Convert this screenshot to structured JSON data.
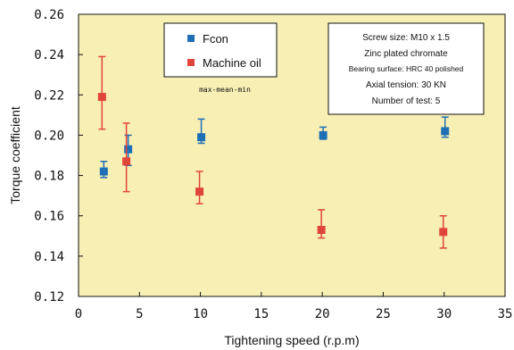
{
  "chart_data": {
    "type": "scatter",
    "xlabel": "Tightening speed (r.p.m)",
    "ylabel": "Torque coefficient",
    "xlim": [
      0,
      35
    ],
    "ylim": [
      0.12,
      0.26
    ],
    "x_ticks": [
      "0",
      "5",
      "10",
      "15",
      "20",
      "25",
      "30",
      "35"
    ],
    "y_ticks": [
      "0.12",
      "0.14",
      "0.16",
      "0.18",
      "0.20",
      "0.22",
      "0.24",
      "0.26"
    ],
    "grid": false,
    "legend_position": "top-left",
    "error_bar_note": "max-mean-min",
    "conditions": [
      "Screw size: M10 x 1.5",
      "Zinc plated chromate",
      "Bearing surface: HRC 40 polished",
      "Axial tension: 30 KN",
      "Number of test: 5"
    ],
    "series": [
      {
        "name": "Fcon",
        "color": "#1f6fb7",
        "points": [
          {
            "x": 2,
            "mean": 0.182,
            "min": 0.179,
            "max": 0.187
          },
          {
            "x": 4,
            "mean": 0.193,
            "min": 0.185,
            "max": 0.2
          },
          {
            "x": 10,
            "mean": 0.199,
            "min": 0.196,
            "max": 0.208
          },
          {
            "x": 20,
            "mean": 0.2,
            "min": 0.198,
            "max": 0.204
          },
          {
            "x": 30,
            "mean": 0.202,
            "min": 0.199,
            "max": 0.209
          }
        ]
      },
      {
        "name": "Machine oil",
        "color": "#e0453a",
        "points": [
          {
            "x": 2,
            "mean": 0.219,
            "min": 0.203,
            "max": 0.239
          },
          {
            "x": 4,
            "mean": 0.187,
            "min": 0.172,
            "max": 0.206
          },
          {
            "x": 10,
            "mean": 0.172,
            "min": 0.166,
            "max": 0.182
          },
          {
            "x": 20,
            "mean": 0.153,
            "min": 0.149,
            "max": 0.163
          },
          {
            "x": 30,
            "mean": 0.152,
            "min": 0.144,
            "max": 0.16
          }
        ]
      }
    ]
  },
  "style": {
    "plot_background": "#f8efb4",
    "axis_color": "#111111",
    "note_box_background": "#ffffff"
  }
}
